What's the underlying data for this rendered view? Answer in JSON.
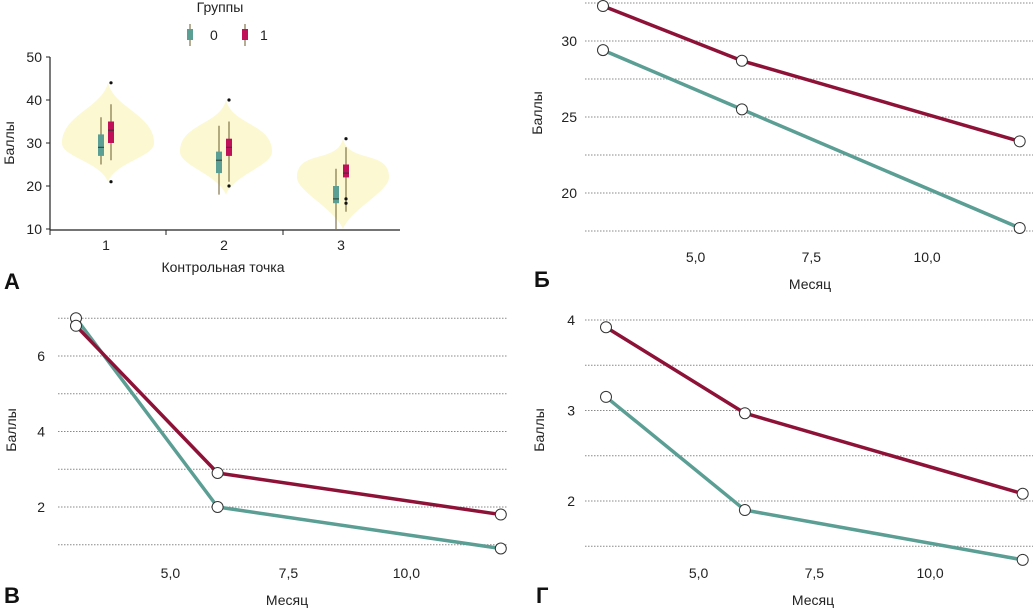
{
  "colors": {
    "group0": "#5a9e94",
    "group1": "#8e1238",
    "group1_box": "#c0105a",
    "violin": "#fbf8d2",
    "grid": "#888888"
  },
  "chart_data": [
    {
      "panel": "А",
      "type": "violin",
      "title": "",
      "legend": {
        "title": "Группы",
        "placement": "top",
        "entries": [
          {
            "label": "0",
            "series": "group0"
          },
          {
            "label": "1",
            "series": "group1"
          }
        ]
      },
      "xlabel": "Контрольная точка",
      "ylabel": "Баллы",
      "categories": [
        "1",
        "2",
        "3"
      ],
      "ylim": [
        10,
        50
      ],
      "yticks": [
        10,
        20,
        30,
        40,
        50
      ],
      "violins": [
        {
          "category": "1",
          "min": 21,
          "max": 44,
          "mode": 30
        },
        {
          "category": "2",
          "min": 18,
          "max": 40,
          "mode": 28
        },
        {
          "category": "3",
          "min": 10,
          "max": 31,
          "mode": 22
        }
      ],
      "series": [
        {
          "name": "0",
          "boxes": [
            {
              "category": "1",
              "whisker_low": 25,
              "q1": 27,
              "median": 29,
              "q3": 32,
              "whisker_high": 36,
              "outliers": []
            },
            {
              "category": "2",
              "whisker_low": 18,
              "q1": 23,
              "median": 26,
              "q3": 28,
              "whisker_high": 34,
              "outliers": []
            },
            {
              "category": "3",
              "whisker_low": 10,
              "q1": 16,
              "median": 17,
              "q3": 20,
              "whisker_high": 24,
              "outliers": []
            }
          ]
        },
        {
          "name": "1",
          "boxes": [
            {
              "category": "1",
              "whisker_low": 26,
              "q1": 30,
              "median": 33,
              "q3": 35,
              "whisker_high": 39,
              "outliers": [
                44,
                21
              ]
            },
            {
              "category": "2",
              "whisker_low": 21,
              "q1": 27,
              "median": 29,
              "q3": 31,
              "whisker_high": 35,
              "outliers": [
                40,
                20
              ]
            },
            {
              "category": "3",
              "whisker_low": 14,
              "q1": 22,
              "median": 23,
              "q3": 25,
              "whisker_high": 29,
              "outliers": [
                31,
                17,
                16
              ]
            }
          ]
        }
      ]
    },
    {
      "panel": "Б",
      "type": "line",
      "xlabel": "Месяц",
      "ylabel": "Баллы",
      "xticks": [
        "5,0",
        "7,5",
        "10,0"
      ],
      "xtick_values": [
        5,
        7.5,
        10
      ],
      "yticks": [
        20,
        25,
        30
      ],
      "grid_values": [
        17.5,
        20,
        22.5,
        25,
        27.5,
        30,
        32.5
      ],
      "ylim": [
        17.5,
        32.5
      ],
      "x": [
        3,
        6,
        12
      ],
      "series": [
        {
          "name": "1",
          "values": [
            32.3,
            28.7,
            23.4
          ]
        },
        {
          "name": "0",
          "values": [
            29.4,
            25.5,
            17.7
          ]
        }
      ]
    },
    {
      "panel": "В",
      "type": "line",
      "xlabel": "Месяц",
      "ylabel": "Баллы",
      "xticks": [
        "5,0",
        "7,5",
        "10,0"
      ],
      "xtick_values": [
        5,
        7.5,
        10
      ],
      "yticks": [
        2,
        4,
        6
      ],
      "grid_values": [
        1,
        2,
        3,
        4,
        5,
        6,
        7
      ],
      "ylim": [
        1,
        7
      ],
      "x": [
        3,
        6,
        12
      ],
      "series": [
        {
          "name": "1",
          "values": [
            6.8,
            2.9,
            1.8
          ]
        },
        {
          "name": "0",
          "values": [
            7.0,
            2.0,
            0.9
          ]
        }
      ]
    },
    {
      "panel": "Г",
      "type": "line",
      "xlabel": "Месяц",
      "ylabel": "Баллы",
      "xticks": [
        "5,0",
        "7,5",
        "10,0"
      ],
      "xtick_values": [
        5,
        7.5,
        10
      ],
      "yticks": [
        2,
        3,
        4
      ],
      "grid_values": [
        1.5,
        2,
        2.5,
        3,
        3.5,
        4
      ],
      "ylim": [
        1.5,
        4
      ],
      "x": [
        3,
        6,
        12
      ],
      "series": [
        {
          "name": "1",
          "values": [
            3.92,
            2.97,
            2.08
          ]
        },
        {
          "name": "0",
          "values": [
            3.15,
            1.9,
            1.35
          ]
        }
      ]
    }
  ]
}
